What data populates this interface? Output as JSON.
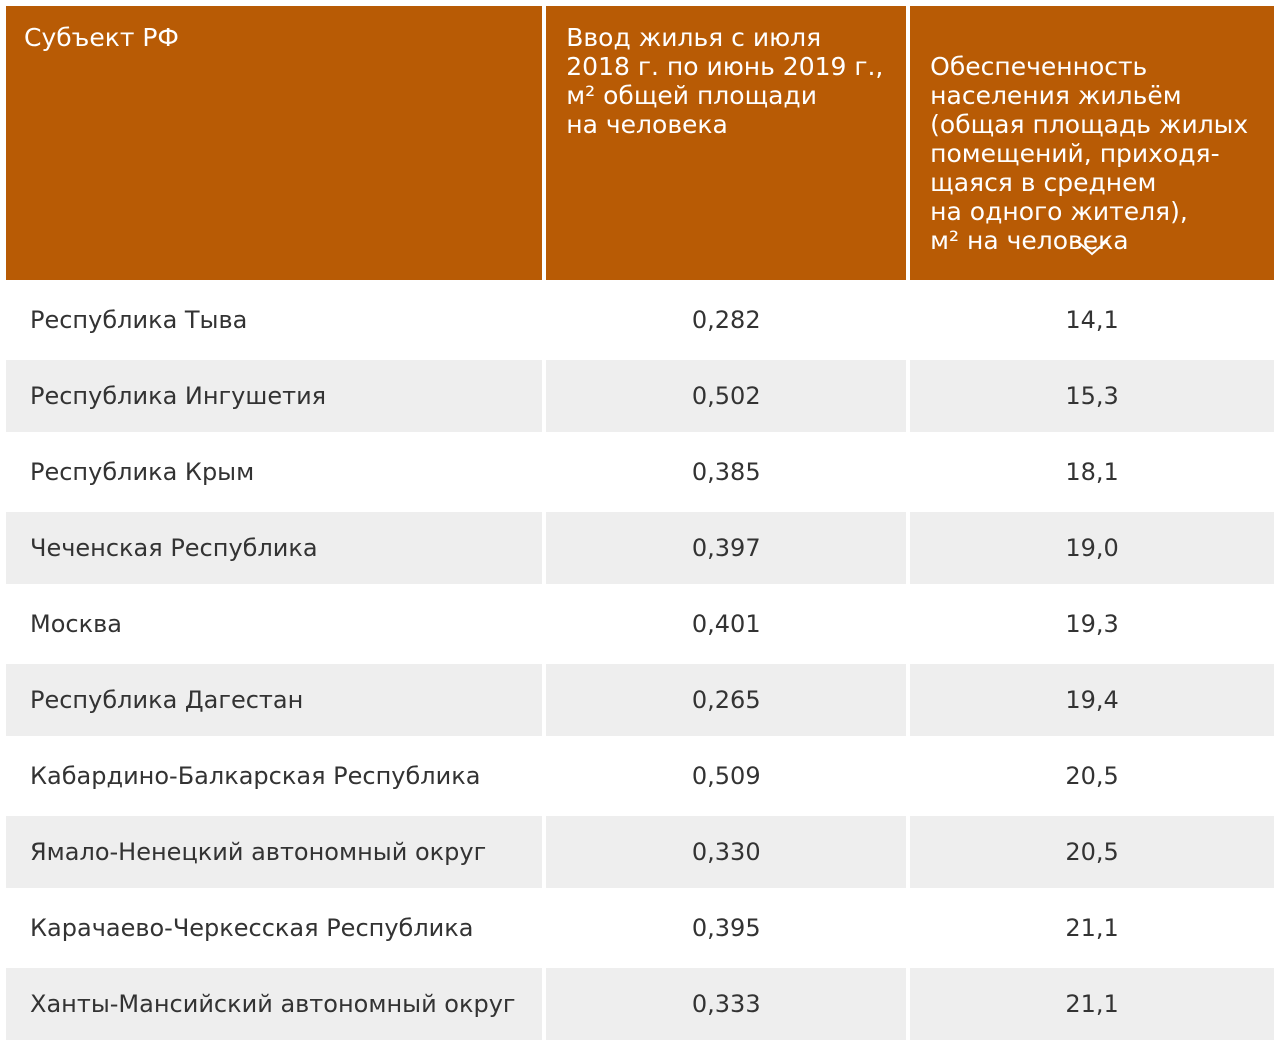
{
  "table": {
    "headers": [
      "Субъект РФ",
      "Ввод жилья с июля\n2018 г. по июнь 2019 г.,\nм² общей площади\nна человека",
      "Обеспеченность\nнаселения жильём\n(общая площадь жилых\nпомещений, приходя-\nщаяся в среднем\nна одного жителя),\nм² на человека"
    ],
    "sort_icon": "chevron-down-icon",
    "rows": [
      [
        "Республика Тыва",
        "0,282",
        "14,1"
      ],
      [
        "Республика Ингушетия",
        "0,502",
        "15,3"
      ],
      [
        "Республика Крым",
        "0,385",
        "18,1"
      ],
      [
        "Чеченская Республика",
        "0,397",
        "19,0"
      ],
      [
        "Москва",
        "0,401",
        "19,3"
      ],
      [
        "Республика Дагестан",
        "0,265",
        "19,4"
      ],
      [
        "Кабардино-Балкарская Республика",
        "0,509",
        "20,5"
      ],
      [
        "Ямало-Ненецкий автономный округ",
        "0,330",
        "20,5"
      ],
      [
        "Карачаево-Черкесская Республика",
        "0,395",
        "21,1"
      ],
      [
        "Ханты-Мансийский автономный округ",
        "0,333",
        "21,1"
      ]
    ]
  },
  "colors": {
    "header_bg": "#b85b05",
    "header_text": "#ffffff",
    "row_alt_bg": "#eeeeee",
    "body_text": "#333333"
  }
}
